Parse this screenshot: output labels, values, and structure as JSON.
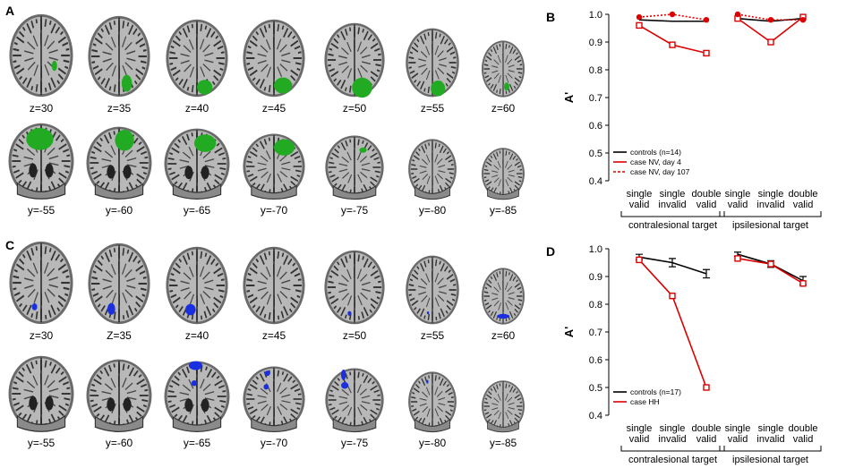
{
  "panels": {
    "A": {
      "letter": "A",
      "axial_labels": [
        "z=30",
        "z=35",
        "z=40",
        "z=45",
        "z=50",
        "z=55",
        "z=60"
      ],
      "coronal_labels": [
        "y=-55",
        "y=-60",
        "y=-65",
        "y=-70",
        "y=-75",
        "y=-80",
        "y=-85"
      ],
      "overlay_color": "#22aa22"
    },
    "C": {
      "letter": "C",
      "axial_labels": [
        "z=30",
        "Z=35",
        "z=40",
        "z=45",
        "z=50",
        "z=55",
        "z=60"
      ],
      "coronal_labels": [
        "y=-55",
        "y=-60",
        "y=-65",
        "y=-70",
        "y=-75",
        "y=-80",
        "y=-85"
      ],
      "overlay_color": "#1a2fe0"
    }
  },
  "chart_data": [
    {
      "panel": "B",
      "type": "line",
      "ylabel": "A'",
      "ylim": [
        0.4,
        1.0
      ],
      "yticks": [
        "1.0",
        "0.9",
        "0.8",
        "0.7",
        "0.6",
        "0.5",
        "0.4"
      ],
      "categories": [
        [
          "single",
          "valid"
        ],
        [
          "single",
          "invalid"
        ],
        [
          "double",
          "valid"
        ],
        [
          "single",
          "valid"
        ],
        [
          "single",
          "invalid"
        ],
        [
          "double",
          "valid"
        ]
      ],
      "groups": [
        "contralesional target",
        "ipsilesional target"
      ],
      "legend": [
        "controls (n=14)",
        "case NV, day 4",
        "case NV, day 107"
      ],
      "series": [
        {
          "name": "controls (n=14)",
          "color": "#000000",
          "style": "solid",
          "values": [
            0.98,
            0.975,
            0.975,
            0.985,
            0.975,
            0.985
          ]
        },
        {
          "name": "case NV, day 4",
          "color": "#dd0000",
          "style": "solid",
          "marker": "square",
          "values": [
            0.96,
            0.89,
            0.86,
            0.985,
            0.9,
            0.99
          ]
        },
        {
          "name": "case NV, day 107",
          "color": "#dd0000",
          "style": "dotted",
          "marker": "circle",
          "values": [
            0.99,
            1.0,
            0.98,
            1.0,
            0.98,
            0.98
          ]
        }
      ]
    },
    {
      "panel": "D",
      "type": "line",
      "ylabel": "A'",
      "ylim": [
        0.4,
        1.0
      ],
      "yticks": [
        "1.0",
        "0.9",
        "0.8",
        "0.7",
        "0.6",
        "0.5",
        "0.4"
      ],
      "categories": [
        [
          "single",
          "valid"
        ],
        [
          "single",
          "invalid"
        ],
        [
          "double",
          "valid"
        ],
        [
          "single",
          "valid"
        ],
        [
          "single",
          "invalid"
        ],
        [
          "double",
          "valid"
        ]
      ],
      "groups": [
        "contralesional target",
        "ipsilesional target"
      ],
      "legend": [
        "controls (n=17)",
        "case HH"
      ],
      "series": [
        {
          "name": "controls (n=17)",
          "color": "#000000",
          "style": "solid",
          "errorbars": true,
          "values": [
            0.97,
            0.95,
            0.91,
            0.98,
            0.945,
            0.885
          ],
          "errors": [
            0.01,
            0.015,
            0.015,
            0.008,
            0.012,
            0.015
          ]
        },
        {
          "name": "case HH",
          "color": "#dd0000",
          "style": "solid",
          "marker": "square",
          "values": [
            0.96,
            0.83,
            0.5,
            0.965,
            0.945,
            0.875
          ]
        }
      ]
    }
  ]
}
